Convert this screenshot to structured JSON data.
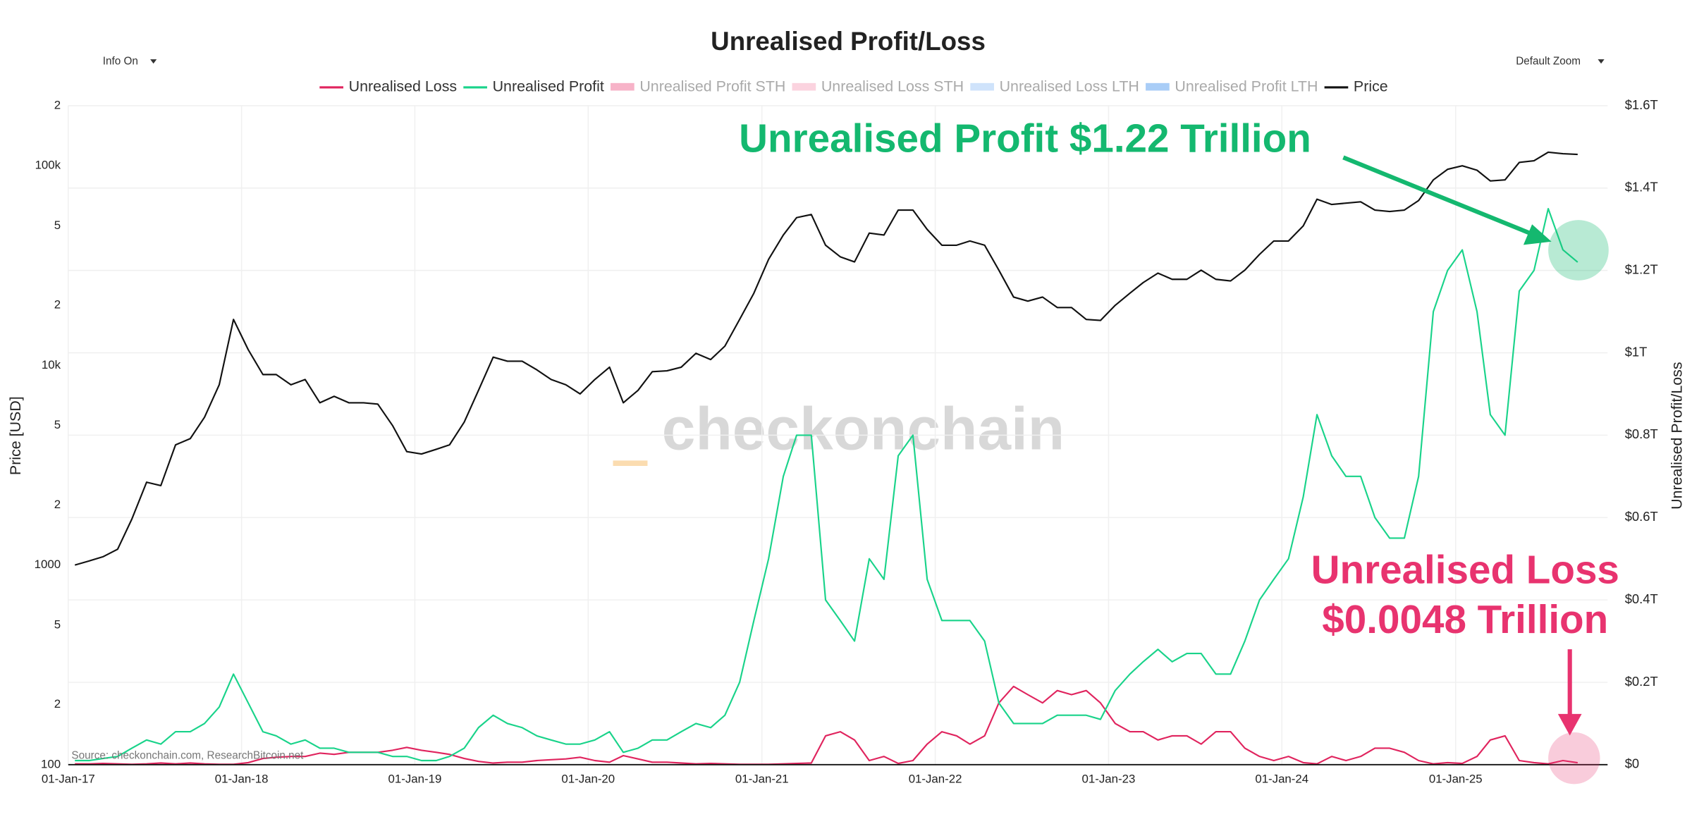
{
  "chart_data": {
    "type": "line",
    "title": "Unrealised Profit/Loss",
    "controls": [
      "Info On",
      "Default Zoom"
    ],
    "y_label": "Price [USD]",
    "y2_label": "Unrealised Profit/Loss",
    "watermark": "checkonchain",
    "source": "Source: checkonchain.com, ResearchBitcoin.net",
    "annotations": [
      {
        "text": "Unrealised Profit $1.22 Trillion",
        "color": "#14b86f"
      },
      {
        "text": "Unrealised Loss",
        "color": "#e8336f"
      },
      {
        "text": "$0.0048 Trillion",
        "color": "#e8336f"
      }
    ],
    "log_y": true,
    "grid": true,
    "x": [
      "2017-01-15",
      "2017-02-15",
      "2017-03-15",
      "2017-04-15",
      "2017-05-15",
      "2017-06-15",
      "2017-07-15",
      "2017-08-15",
      "2017-09-15",
      "2017-10-15",
      "2017-11-15",
      "2017-12-15",
      "2018-01-15",
      "2018-02-15",
      "2018-03-15",
      "2018-04-15",
      "2018-05-15",
      "2018-06-15",
      "2018-07-15",
      "2018-08-15",
      "2018-09-15",
      "2018-10-15",
      "2018-11-15",
      "2018-12-15",
      "2019-01-15",
      "2019-02-15",
      "2019-03-15",
      "2019-04-15",
      "2019-05-15",
      "2019-06-15",
      "2019-07-15",
      "2019-08-15",
      "2019-09-15",
      "2019-10-15",
      "2019-11-15",
      "2019-12-15",
      "2020-01-15",
      "2020-02-15",
      "2020-03-15",
      "2020-04-15",
      "2020-05-15",
      "2020-06-15",
      "2020-07-15",
      "2020-08-15",
      "2020-09-15",
      "2020-10-15",
      "2020-11-15",
      "2020-12-15",
      "2021-01-15",
      "2021-02-15",
      "2021-03-15",
      "2021-04-15",
      "2021-05-15",
      "2021-06-15",
      "2021-07-15",
      "2021-08-15",
      "2021-09-15",
      "2021-10-15",
      "2021-11-15",
      "2021-12-15",
      "2022-01-15",
      "2022-02-15",
      "2022-03-15",
      "2022-04-15",
      "2022-05-15",
      "2022-06-15",
      "2022-07-15",
      "2022-08-15",
      "2022-09-15",
      "2022-10-15",
      "2022-11-15",
      "2022-12-15",
      "2023-01-15",
      "2023-02-15",
      "2023-03-15",
      "2023-04-15",
      "2023-05-15",
      "2023-06-15",
      "2023-07-15",
      "2023-08-15",
      "2023-09-15",
      "2023-10-15",
      "2023-11-15",
      "2023-12-15",
      "2024-01-15",
      "2024-02-15",
      "2024-03-15",
      "2024-04-15",
      "2024-05-15",
      "2024-06-15",
      "2024-07-15",
      "2024-08-15",
      "2024-09-15",
      "2024-10-15",
      "2024-11-15",
      "2024-12-15",
      "2025-01-15",
      "2025-02-15",
      "2025-03-15",
      "2025-04-15",
      "2025-05-15",
      "2025-06-15",
      "2025-07-15",
      "2025-08-15",
      "2025-09-15"
    ],
    "series": [
      {
        "name": "Unrealised Loss",
        "color": "#e0245e",
        "axis": "y2",
        "values": [
          0.002,
          0.002,
          0.003,
          0.002,
          0.001,
          0.002,
          0.004,
          0.002,
          0.004,
          0.002,
          0.001,
          0.001,
          0.005,
          0.015,
          0.018,
          0.02,
          0.02,
          0.028,
          0.025,
          0.03,
          0.03,
          0.03,
          0.035,
          0.042,
          0.035,
          0.03,
          0.025,
          0.015,
          0.008,
          0.004,
          0.006,
          0.006,
          0.01,
          0.012,
          0.014,
          0.018,
          0.01,
          0.006,
          0.022,
          0.014,
          0.006,
          0.006,
          0.004,
          0.002,
          0.003,
          0.002,
          0.001,
          0.001,
          0.001,
          0.002,
          0.003,
          0.004,
          0.07,
          0.08,
          0.06,
          0.01,
          0.02,
          0.003,
          0.01,
          0.05,
          0.08,
          0.07,
          0.05,
          0.07,
          0.15,
          0.19,
          0.17,
          0.15,
          0.18,
          0.17,
          0.18,
          0.15,
          0.1,
          0.08,
          0.08,
          0.06,
          0.07,
          0.07,
          0.05,
          0.08,
          0.08,
          0.04,
          0.02,
          0.01,
          0.02,
          0.005,
          0.002,
          0.02,
          0.01,
          0.02,
          0.04,
          0.04,
          0.03,
          0.01,
          0.002,
          0.005,
          0.003,
          0.02,
          0.06,
          0.07,
          0.01,
          0.005,
          0.002,
          0.01,
          0.0048
        ]
      },
      {
        "name": "Unrealised Profit",
        "color": "#19d38a",
        "axis": "y2",
        "values": [
          0.01,
          0.01,
          0.015,
          0.02,
          0.04,
          0.06,
          0.05,
          0.08,
          0.08,
          0.1,
          0.14,
          0.22,
          0.15,
          0.08,
          0.07,
          0.05,
          0.06,
          0.04,
          0.04,
          0.03,
          0.03,
          0.03,
          0.02,
          0.02,
          0.01,
          0.01,
          0.02,
          0.04,
          0.09,
          0.12,
          0.1,
          0.09,
          0.07,
          0.06,
          0.05,
          0.05,
          0.06,
          0.08,
          0.03,
          0.04,
          0.06,
          0.06,
          0.08,
          0.1,
          0.09,
          0.12,
          0.2,
          0.35,
          0.5,
          0.7,
          0.8,
          0.8,
          0.4,
          0.35,
          0.3,
          0.5,
          0.45,
          0.75,
          0.8,
          0.45,
          0.35,
          0.35,
          0.35,
          0.3,
          0.15,
          0.1,
          0.1,
          0.1,
          0.12,
          0.12,
          0.12,
          0.11,
          0.18,
          0.22,
          0.25,
          0.28,
          0.25,
          0.27,
          0.27,
          0.22,
          0.22,
          0.3,
          0.4,
          0.45,
          0.5,
          0.65,
          0.85,
          0.75,
          0.7,
          0.7,
          0.6,
          0.55,
          0.55,
          0.7,
          1.1,
          1.2,
          1.25,
          1.1,
          0.85,
          0.8,
          1.15,
          1.2,
          1.35,
          1.25,
          1.22
        ]
      },
      {
        "name": "Price",
        "color": "#111111",
        "axis": "y",
        "values": [
          1000,
          1050,
          1100,
          1200,
          1700,
          2600,
          2500,
          4000,
          4300,
          5500,
          8000,
          17000,
          12000,
          9000,
          9000,
          8000,
          8500,
          6500,
          7000,
          6500,
          6500,
          6400,
          5000,
          3700,
          3600,
          3800,
          4000,
          5200,
          7500,
          11000,
          10500,
          10500,
          9500,
          8500,
          8000,
          7200,
          8500,
          9800,
          6500,
          7500,
          9300,
          9400,
          9800,
          11500,
          10700,
          12500,
          17000,
          23000,
          34000,
          45000,
          55000,
          57000,
          40000,
          35000,
          33000,
          46000,
          45000,
          60000,
          60000,
          48000,
          40000,
          40000,
          42000,
          40000,
          30000,
          22000,
          21000,
          22000,
          19500,
          19500,
          17000,
          16800,
          20000,
          23000,
          26000,
          29000,
          27000,
          27000,
          30000,
          27000,
          26500,
          30000,
          36000,
          42000,
          42000,
          50000,
          68000,
          64000,
          65000,
          66000,
          60000,
          59000,
          60000,
          67000,
          85000,
          96000,
          100000,
          95000,
          84000,
          85000,
          104000,
          106000,
          117000,
          115000,
          114000
        ]
      }
    ],
    "hidden_series": [
      {
        "name": "Unrealised Profit STH",
        "color": "#f7b3c8"
      },
      {
        "name": "Unrealised Loss STH",
        "color": "#fbd3df"
      },
      {
        "name": "Unrealised Loss LTH",
        "color": "#cfe3fb"
      },
      {
        "name": "Unrealised Profit LTH",
        "color": "#a9cdf7"
      }
    ],
    "xlim": [
      "2017-01-01",
      "2025-11-17"
    ],
    "xticks": [
      {
        "value": "2017-01-01",
        "label": "01-Jan-17"
      },
      {
        "value": "2018-01-01",
        "label": "01-Jan-18"
      },
      {
        "value": "2019-01-01",
        "label": "01-Jan-19"
      },
      {
        "value": "2020-01-01",
        "label": "01-Jan-20"
      },
      {
        "value": "2021-01-01",
        "label": "01-Jan-21"
      },
      {
        "value": "2022-01-01",
        "label": "01-Jan-22"
      },
      {
        "value": "2023-01-01",
        "label": "01-Jan-23"
      },
      {
        "value": "2024-01-01",
        "label": "01-Jan-24"
      },
      {
        "value": "2025-01-01",
        "label": "01-Jan-25"
      }
    ],
    "ylim": [
      100,
      200000
    ],
    "yticks": [
      100,
      {
        "value": 200,
        "label": "2"
      },
      {
        "value": 500,
        "label": "5"
      },
      1000,
      {
        "value": 2000,
        "label": "2"
      },
      {
        "value": 5000,
        "label": "5"
      },
      {
        "value": 10000,
        "label": "10k"
      },
      {
        "value": 20000,
        "label": "2"
      },
      {
        "value": 50000,
        "label": "5"
      },
      {
        "value": 100000,
        "label": "100k"
      },
      {
        "value": 200000,
        "label": "2"
      }
    ],
    "y2lim": [
      0,
      1.6
    ],
    "y2ticks": [
      {
        "value": 0,
        "label": "$0"
      },
      {
        "value": 0.2,
        "label": "$0.2T"
      },
      {
        "value": 0.4,
        "label": "$0.4T"
      },
      {
        "value": 0.6,
        "label": "$0.6T"
      },
      {
        "value": 0.8,
        "label": "$0.8T"
      },
      {
        "value": 1,
        "label": "$1T"
      },
      {
        "value": 1.2,
        "label": "$1.2T"
      },
      {
        "value": 1.4,
        "label": "$1.4T"
      },
      {
        "value": 1.6,
        "label": "$1.6T"
      }
    ]
  }
}
